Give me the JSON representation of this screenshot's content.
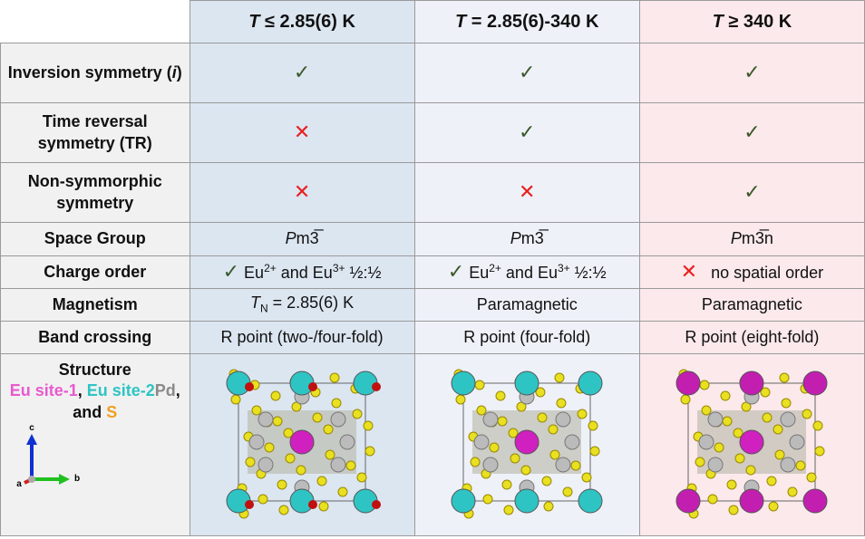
{
  "header": [
    [
      {
        "i": "T"
      },
      " ≤ 2.85(6) K"
    ],
    [
      {
        "i": "T"
      },
      " = 2.85(6)-340 K"
    ],
    [
      {
        "i": "T"
      },
      " ≥ 340 K"
    ]
  ],
  "rows": [
    {
      "label": [
        "Inversion symmetry (",
        {
          "i": "i"
        },
        ")"
      ],
      "cells": [
        [
          {
            "check": "✓"
          }
        ],
        [
          {
            "check": "✓"
          }
        ],
        [
          {
            "check": "✓"
          }
        ]
      ]
    },
    {
      "label": [
        "Time reversal symmetry (TR)"
      ],
      "cells": [
        [
          {
            "cross": "✕"
          }
        ],
        [
          {
            "check": "✓"
          }
        ],
        [
          {
            "check": "✓"
          }
        ]
      ]
    },
    {
      "label": [
        "Non-symmorphic symmetry"
      ],
      "cells": [
        [
          {
            "cross": "✕"
          }
        ],
        [
          {
            "cross": "✕"
          }
        ],
        [
          {
            "check": "✓"
          }
        ]
      ]
    },
    {
      "label": [
        "Space Group"
      ],
      "cells": [
        [
          {
            "i": "P"
          },
          "m3̅"
        ],
        [
          {
            "i": "P"
          },
          "m3̅"
        ],
        [
          {
            "i": "P"
          },
          "m3̅n"
        ]
      ]
    },
    {
      "label": [
        "Charge order"
      ],
      "cells": [
        [
          {
            "check": "✓"
          },
          " Eu",
          {
            "sup": "2+"
          },
          " and Eu",
          {
            "sup": "3+"
          },
          " ½:½"
        ],
        [
          {
            "check": "✓"
          },
          " Eu",
          {
            "sup": "2+"
          },
          " and Eu",
          {
            "sup": "3+"
          },
          " ½:½"
        ],
        [
          {
            "cross": "✕"
          },
          "   no spatial order"
        ]
      ]
    },
    {
      "label": [
        "Magnetism"
      ],
      "cells": [
        [
          {
            "i": "T"
          },
          {
            "sub": "N"
          },
          " = 2.85(6) K"
        ],
        [
          "Paramagnetic"
        ],
        [
          "Paramagnetic"
        ]
      ]
    },
    {
      "label": [
        "Band crossing"
      ],
      "cells": [
        [
          "R point (two-/four-fold)"
        ],
        [
          "R point (four-fold)"
        ],
        [
          "R point (eight-fold)"
        ]
      ]
    }
  ],
  "structure": {
    "label": [
      "Structure"
    ],
    "legend": [
      {
        "t": "Eu site-1",
        "color": "#e85ad0"
      },
      ", ",
      {
        "t": "Eu site-2",
        "color": "#2ec4c4"
      },
      {
        "t": "Pd",
        "color": "#8a8a8a"
      },
      ", and ",
      {
        "t": "S",
        "color": "#f0a020"
      }
    ],
    "axes": [
      "c",
      "a",
      "b"
    ]
  }
}
